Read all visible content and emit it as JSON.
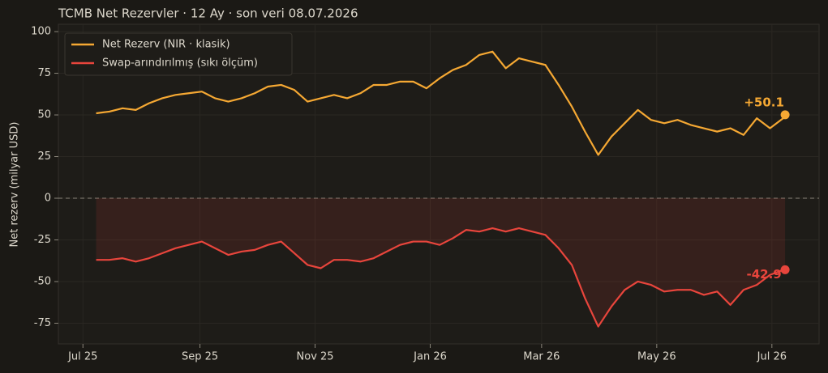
{
  "chart_data": {
    "type": "line",
    "title": "TCMB Net Rezervler · 12 Ay · son veri 08.07.2026",
    "y_label": "Net rezerv (milyar USD)",
    "x": [
      "2025-07-08",
      "2025-07-15",
      "2025-07-22",
      "2025-07-29",
      "2025-08-05",
      "2025-08-12",
      "2025-08-19",
      "2025-08-26",
      "2025-09-02",
      "2025-09-09",
      "2025-09-16",
      "2025-09-23",
      "2025-09-30",
      "2025-10-07",
      "2025-10-14",
      "2025-10-21",
      "2025-10-28",
      "2025-11-04",
      "2025-11-11",
      "2025-11-18",
      "2025-11-25",
      "2025-12-02",
      "2025-12-09",
      "2025-12-16",
      "2025-12-23",
      "2025-12-30",
      "2026-01-06",
      "2026-01-13",
      "2026-01-20",
      "2026-01-27",
      "2026-02-03",
      "2026-02-10",
      "2026-02-17",
      "2026-02-24",
      "2026-03-03",
      "2026-03-10",
      "2026-03-17",
      "2026-03-24",
      "2026-03-31",
      "2026-04-07",
      "2026-04-14",
      "2026-04-21",
      "2026-04-28",
      "2026-05-05",
      "2026-05-12",
      "2026-05-19",
      "2026-05-26",
      "2026-06-02",
      "2026-06-09",
      "2026-06-16",
      "2026-06-23",
      "2026-06-30",
      "2026-07-07",
      "2026-07-08"
    ],
    "series": [
      {
        "name": "Net Rezerv (NIR · klasik)",
        "color": "#f5a833",
        "last_label": "+50.1",
        "values": [
          51,
          52,
          54,
          53,
          57,
          60,
          62,
          63,
          64,
          60,
          58,
          60,
          63,
          67,
          68,
          65,
          58,
          60,
          62,
          60,
          63,
          68,
          68,
          70,
          70,
          66,
          72,
          77,
          80,
          86,
          88,
          78,
          84,
          82,
          80,
          68,
          55,
          40,
          26,
          37,
          45,
          53,
          47,
          45,
          47,
          44,
          42,
          40,
          42,
          38,
          48,
          42,
          48,
          50.1
        ]
      },
      {
        "name": "Swap-arındırılmış (sıkı ölçüm)",
        "color": "#e8453c",
        "last_label": "-42.9",
        "fill": true,
        "values": [
          -37,
          -37,
          -36,
          -38,
          -36,
          -33,
          -30,
          -28,
          -26,
          -30,
          -34,
          -32,
          -31,
          -28,
          -26,
          -33,
          -40,
          -42,
          -37,
          -37,
          -38,
          -36,
          -32,
          -28,
          -26,
          -26,
          -28,
          -24,
          -19,
          -20,
          -18,
          -20,
          -18,
          -20,
          -22,
          -30,
          -40,
          -60,
          -77,
          -65,
          -55,
          -50,
          -52,
          -56,
          -55,
          -55,
          -58,
          -56,
          -64,
          -55,
          -52,
          -46,
          -43,
          -42.9
        ]
      }
    ],
    "xlim": [
      "2025-06-18",
      "2026-07-26"
    ],
    "xticks": [
      {
        "value": "2025-07-01",
        "label": "Jul 25"
      },
      {
        "value": "2025-09-01",
        "label": "Sep 25"
      },
      {
        "value": "2025-11-01",
        "label": "Nov 25"
      },
      {
        "value": "2026-01-01",
        "label": "Jan 26"
      },
      {
        "value": "2026-03-01",
        "label": "Mar 26"
      },
      {
        "value": "2026-05-01",
        "label": "May 26"
      },
      {
        "value": "2026-07-01",
        "label": "Jul 26"
      }
    ],
    "ylim": [
      -87.4,
      104.4
    ],
    "yticks": [
      -75,
      -50,
      -25,
      0,
      25,
      50,
      75,
      100
    ],
    "grid": true,
    "legend": "upper left"
  }
}
